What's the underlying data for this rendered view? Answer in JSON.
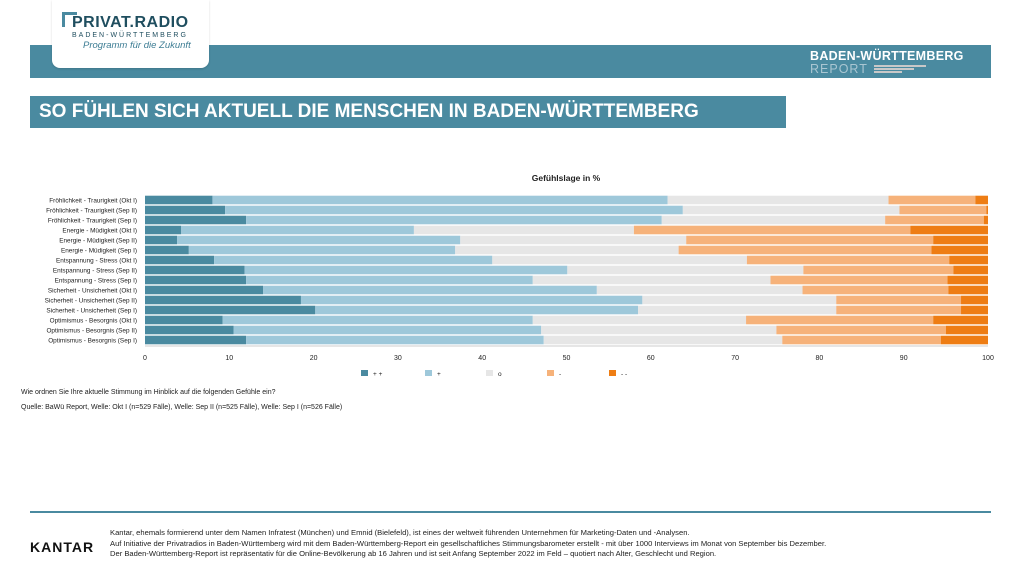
{
  "header": {
    "logo_name": "PRIVAT.RADIO",
    "logo_sub": "BADEN-WÜRTTEMBERG",
    "logo_tagline": "Programm für die Zukunft",
    "report_title": "BADEN-WÜRTTEMBERG",
    "report_sub": "REPORT",
    "brand_color": "#4a8aa0"
  },
  "headline": "SO FÜHLEN SICH AKTUELL DIE MENSCHEN IN BADEN-WÜRTTEMBERG",
  "chart_data": {
    "type": "bar",
    "orientation": "horizontal",
    "stacked": true,
    "title": "Gefühlslage in %",
    "xlim": [
      0,
      100
    ],
    "xticks": [
      0,
      10,
      20,
      30,
      40,
      50,
      60,
      70,
      80,
      90,
      100
    ],
    "legend_position": "bottom",
    "categories": [
      "Fröhlichkeit - Traurigkeit (Okt I)",
      "Fröhlichkeit - Traurigkeit (Sep II)",
      "Fröhlichkeit - Traurigkeit (Sep I)",
      "Energie - Müdigkeit (Okt I)",
      "Energie - Müdigkeit (Sep II)",
      "Energie - Müdigkeit (Sep I)",
      "Entspannung - Stress (Okt I)",
      "Entspannung - Stress (Sep II)",
      "Entspannung - Stress (Sep I)",
      "Sicherheit - Unsicherheit (Okt I)",
      "Sicherheit - Unsicherheit (Sep II)",
      "Sicherheit - Unsicherheit (Sep I)",
      "Optimismus - Besorgnis (Okt I)",
      "Optimismus - Besorgnis (Sep II)",
      "Optimismus - Besorgnis (Sep I)"
    ],
    "series": [
      {
        "name": "+ +",
        "color": "#4a8aa0",
        "values": [
          8,
          9.5,
          12,
          4.3,
          3.8,
          5.2,
          8.2,
          11.8,
          12,
          14,
          18.5,
          20.2,
          9.2,
          10.5,
          12
        ]
      },
      {
        "name": "+",
        "color": "#9ec8da",
        "values": [
          54,
          54.3,
          49.3,
          27.6,
          33.6,
          31.6,
          33,
          38.3,
          34,
          39.6,
          40.5,
          38.3,
          36.8,
          36.5,
          35.3
        ]
      },
      {
        "name": "o",
        "color": "#e6e6e6",
        "values": [
          26.2,
          25.7,
          26.5,
          26.1,
          26.8,
          26.5,
          30.2,
          28,
          28.2,
          24.4,
          23,
          23.5,
          25.3,
          27.9,
          28.3
        ]
      },
      {
        "name": "-",
        "color": "#f6b27a",
        "values": [
          10.3,
          10.3,
          11.7,
          32.8,
          29.3,
          30,
          24,
          17.8,
          21,
          17.3,
          14.8,
          14.8,
          22.2,
          20.1,
          18.8
        ]
      },
      {
        "name": "- -",
        "color": "#ee7d14",
        "values": [
          1.5,
          0.2,
          0.5,
          9.2,
          6.5,
          6.7,
          4.6,
          4.1,
          4.8,
          4.7,
          3.2,
          3.2,
          6.5,
          5,
          5.6
        ]
      }
    ]
  },
  "question": "Wie ordnen Sie Ihre aktuelle Stimmung im Hinblick auf die folgenden Gefühle ein?",
  "source": "Quelle: BaWü Report, Welle: Okt I (n=529 Fälle), Welle: Sep II (n=525 Fälle), Welle: Sep I (n=526 Fälle)",
  "footer": {
    "logo": "KANTAR",
    "line1": "Kantar, ehemals formierend unter dem Namen Infratest (München) und Emnid (Bielefeld), ist eines der weltweit führenden Unternehmen für Marketing-Daten und -Analysen.",
    "line2": "Auf Initiative der Privatradios in Baden-Württemberg wird mit dem Baden-Württemberg-Report ein gesellschaftliches Stimmungsbarometer erstellt - mit über 1000 Interviews im Monat von September bis Dezember.",
    "line3": "Der Baden-Württemberg-Report ist repräsentativ für die Online-Bevölkerung ab 16 Jahren und ist seit Anfang September 2022 im Feld – quotiert nach Alter, Geschlecht und Region."
  }
}
